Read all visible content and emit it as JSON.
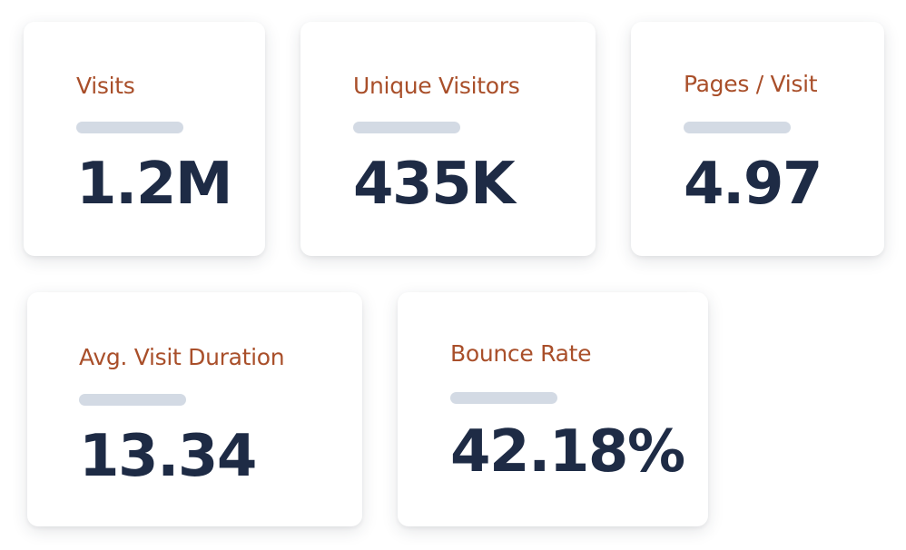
{
  "colors": {
    "label": "#a94f2a",
    "value": "#1e2b45",
    "bar": "#d3dae4",
    "card_background": "#ffffff"
  },
  "stats": [
    {
      "label": "Visits",
      "value": "1.2M"
    },
    {
      "label": "Unique Visitors",
      "value": "435K"
    },
    {
      "label": "Pages / Visit",
      "value": "4.97"
    },
    {
      "label": "Avg. Visit Duration",
      "value": "13.34"
    },
    {
      "label": "Bounce Rate",
      "value": "42.18%"
    }
  ]
}
